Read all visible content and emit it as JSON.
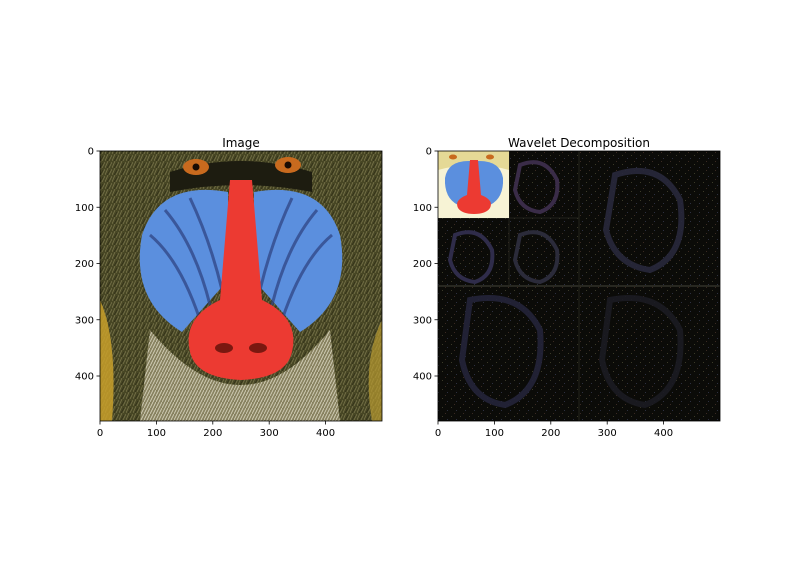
{
  "chart_data": [
    {
      "type": "image",
      "title": "Image",
      "xlim": [
        0,
        500
      ],
      "ylim": [
        480,
        0
      ],
      "xticks": [
        0,
        100,
        200,
        300,
        400
      ],
      "yticks": [
        0,
        100,
        200,
        300,
        400
      ],
      "grid": false
    },
    {
      "type": "image",
      "title": "Wavelet Decomposition",
      "xlim": [
        0,
        500
      ],
      "ylim": [
        480,
        0
      ],
      "xticks": [
        0,
        100,
        200,
        300,
        400
      ],
      "yticks": [
        0,
        100,
        200,
        300,
        400
      ],
      "grid": false
    }
  ],
  "colors": {
    "fur": "#4b4a24",
    "nose": "#ec3a32",
    "cheek": "#5b8fde",
    "eye": "#c86a1e",
    "beard": "#cfcab0",
    "background": "#0b0b08",
    "approx_bg": "#f7f3d5"
  }
}
